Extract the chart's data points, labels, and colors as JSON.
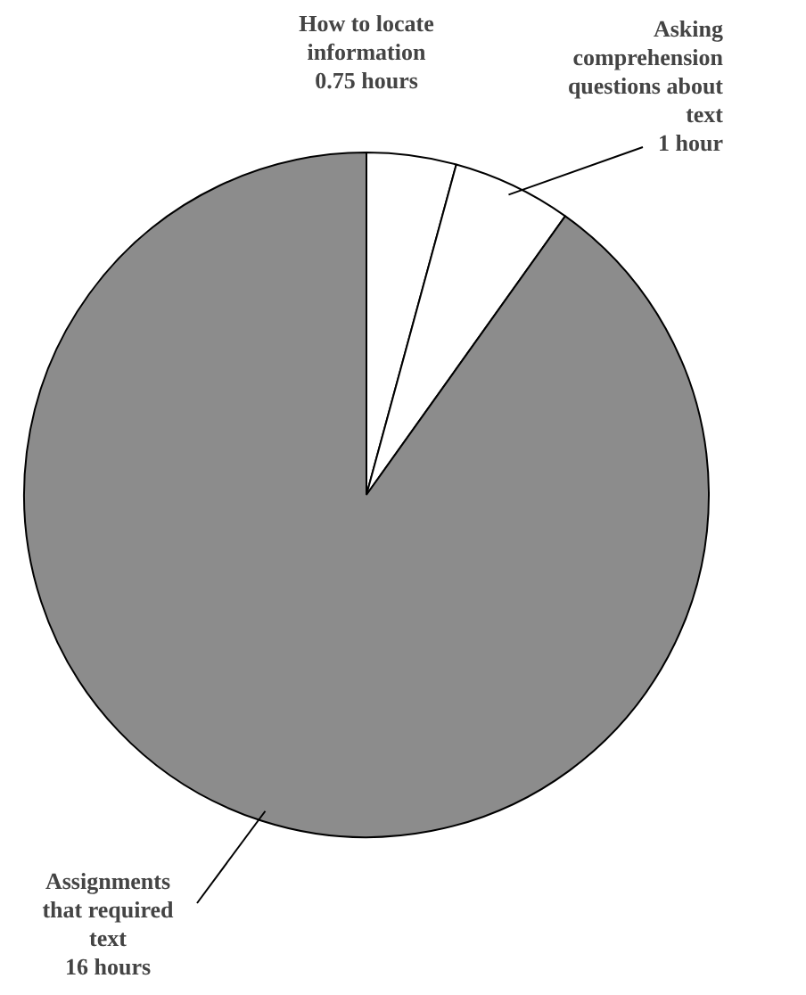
{
  "chart_data": {
    "type": "pie",
    "categories": [
      "How to locate information",
      "Asking comprehension questions about text",
      "Assignments that required text"
    ],
    "values": [
      0.75,
      1,
      16
    ],
    "colors": [
      "#ffffff",
      "#ffffff",
      "#8c8c8c"
    ],
    "value_labels": [
      "0.75 hours",
      "1 hour",
      "16 hours"
    ]
  }
}
